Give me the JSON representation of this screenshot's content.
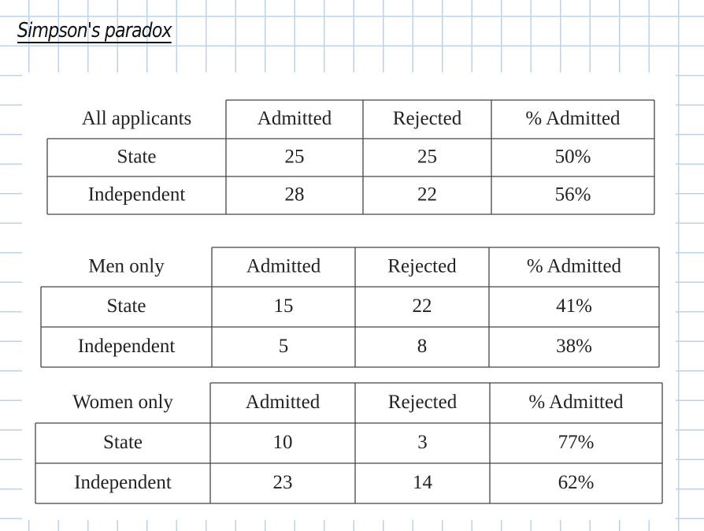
{
  "title": "Simpson's paradox",
  "tables": [
    {
      "header": [
        "All applicants",
        "Admitted",
        "Rejected",
        "% Admitted"
      ],
      "rows": [
        [
          "State",
          "25",
          "25",
          "50%"
        ],
        [
          "Independent",
          "28",
          "22",
          "56%"
        ]
      ]
    },
    {
      "header": [
        "Men only",
        "Admitted",
        "Rejected",
        "% Admitted"
      ],
      "rows": [
        [
          "State",
          "15",
          "22",
          "41%"
        ],
        [
          "Independent",
          "5",
          "8",
          "38%"
        ]
      ]
    },
    {
      "header": [
        "Women only",
        "Admitted",
        "Rejected",
        "% Admitted"
      ],
      "rows": [
        [
          "State",
          "10",
          "3",
          "77%"
        ],
        [
          "Independent",
          "23",
          "14",
          "62%"
        ]
      ]
    }
  ]
}
